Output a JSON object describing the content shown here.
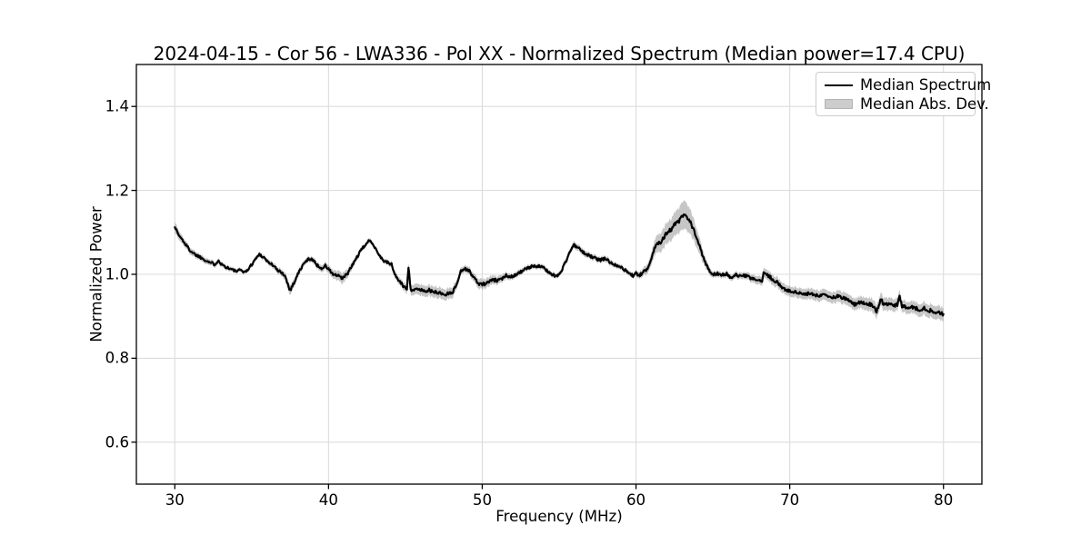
{
  "chart_data": {
    "type": "line",
    "title": "2024-04-15 - Cor 56 - LWA336 - Pol XX - Normalized Spectrum (Median power=17.4 CPU)",
    "xlabel": "Frequency (MHz)",
    "ylabel": "Normalized Power",
    "xlim": [
      27.5,
      82.5
    ],
    "ylim": [
      0.5,
      1.5
    ],
    "xticks": [
      "30",
      "40",
      "50",
      "60",
      "70",
      "80"
    ],
    "yticks": [
      "0.6",
      "0.8",
      "1.0",
      "1.2",
      "1.4"
    ],
    "grid": true,
    "grid_color": "#dcdcdc",
    "legend": {
      "position": "upper-right",
      "entries": [
        {
          "label": "Median Spectrum",
          "swatch": "line",
          "color": "#000000"
        },
        {
          "label": "Median Abs. Dev.",
          "swatch": "patch",
          "color": "#cdcdcd"
        }
      ]
    },
    "series": [
      {
        "name": "Median Spectrum",
        "type": "line",
        "color": "#000000",
        "points": [
          [
            30.0,
            1.115
          ],
          [
            30.1,
            1.105
          ],
          [
            30.3,
            1.091
          ],
          [
            30.5,
            1.082
          ],
          [
            30.8,
            1.066
          ],
          [
            31.0,
            1.057
          ],
          [
            31.3,
            1.048
          ],
          [
            31.7,
            1.04
          ],
          [
            32.0,
            1.034
          ],
          [
            32.3,
            1.028
          ],
          [
            32.6,
            1.024
          ],
          [
            32.85,
            1.034
          ],
          [
            33.0,
            1.025
          ],
          [
            33.3,
            1.018
          ],
          [
            33.6,
            1.013
          ],
          [
            34.0,
            1.007
          ],
          [
            34.3,
            1.01
          ],
          [
            34.6,
            1.005
          ],
          [
            34.9,
            1.018
          ],
          [
            35.2,
            1.034
          ],
          [
            35.5,
            1.048
          ],
          [
            35.8,
            1.04
          ],
          [
            36.1,
            1.028
          ],
          [
            36.4,
            1.022
          ],
          [
            36.7,
            1.008
          ],
          [
            37.0,
            1.004
          ],
          [
            37.2,
            0.993
          ],
          [
            37.5,
            0.962
          ],
          [
            37.7,
            0.976
          ],
          [
            38.0,
            1.0
          ],
          [
            38.3,
            1.02
          ],
          [
            38.6,
            1.034
          ],
          [
            38.9,
            1.038
          ],
          [
            39.2,
            1.024
          ],
          [
            39.5,
            1.014
          ],
          [
            39.8,
            1.02
          ],
          [
            40.0,
            1.012
          ],
          [
            40.3,
            1.0
          ],
          [
            40.6,
            0.996
          ],
          [
            40.9,
            0.99
          ],
          [
            41.2,
            1.0
          ],
          [
            41.5,
            1.018
          ],
          [
            41.8,
            1.038
          ],
          [
            42.1,
            1.056
          ],
          [
            42.4,
            1.071
          ],
          [
            42.65,
            1.08
          ],
          [
            42.9,
            1.073
          ],
          [
            43.2,
            1.052
          ],
          [
            43.5,
            1.035
          ],
          [
            43.8,
            1.028
          ],
          [
            44.1,
            1.024
          ],
          [
            44.3,
            1.0
          ],
          [
            44.6,
            0.984
          ],
          [
            44.9,
            0.97
          ],
          [
            45.1,
            0.967
          ],
          [
            45.2,
            1.018
          ],
          [
            45.35,
            0.964
          ],
          [
            45.6,
            0.962
          ],
          [
            45.9,
            0.965
          ],
          [
            46.2,
            0.96
          ],
          [
            46.5,
            0.963
          ],
          [
            46.8,
            0.957
          ],
          [
            47.1,
            0.958
          ],
          [
            47.4,
            0.953
          ],
          [
            47.6,
            0.951
          ],
          [
            47.9,
            0.957
          ],
          [
            48.1,
            0.958
          ],
          [
            48.35,
            0.978
          ],
          [
            48.6,
            1.008
          ],
          [
            48.9,
            1.013
          ],
          [
            49.1,
            1.01
          ],
          [
            49.4,
            0.995
          ],
          [
            49.7,
            0.98
          ],
          [
            49.9,
            0.976
          ],
          [
            50.2,
            0.977
          ],
          [
            50.5,
            0.984
          ],
          [
            50.8,
            0.986
          ],
          [
            51.1,
            0.985
          ],
          [
            51.35,
            0.991
          ],
          [
            51.55,
            0.999
          ],
          [
            51.8,
            0.994
          ],
          [
            52.1,
            0.998
          ],
          [
            52.4,
            1.004
          ],
          [
            52.7,
            1.01
          ],
          [
            53.0,
            1.015
          ],
          [
            53.3,
            1.02
          ],
          [
            53.6,
            1.02
          ],
          [
            53.9,
            1.017
          ],
          [
            54.2,
            1.009
          ],
          [
            54.5,
            1.001
          ],
          [
            54.8,
            0.995
          ],
          [
            55.1,
            1.004
          ],
          [
            55.4,
            1.028
          ],
          [
            55.7,
            1.054
          ],
          [
            55.95,
            1.07
          ],
          [
            56.2,
            1.064
          ],
          [
            56.5,
            1.054
          ],
          [
            56.8,
            1.047
          ],
          [
            57.1,
            1.042
          ],
          [
            57.4,
            1.037
          ],
          [
            57.7,
            1.034
          ],
          [
            58.0,
            1.038
          ],
          [
            58.3,
            1.029
          ],
          [
            58.6,
            1.024
          ],
          [
            58.9,
            1.02
          ],
          [
            59.2,
            1.012
          ],
          [
            59.5,
            1.004
          ],
          [
            59.8,
            0.997
          ],
          [
            60.0,
            1.002
          ],
          [
            60.2,
            0.997
          ],
          [
            60.5,
            1.005
          ],
          [
            60.7,
            1.012
          ],
          [
            61.0,
            1.038
          ],
          [
            61.2,
            1.062
          ],
          [
            61.35,
            1.072
          ],
          [
            61.6,
            1.078
          ],
          [
            61.9,
            1.094
          ],
          [
            62.2,
            1.104
          ],
          [
            62.5,
            1.117
          ],
          [
            62.8,
            1.127
          ],
          [
            63.1,
            1.141
          ],
          [
            63.3,
            1.133
          ],
          [
            63.5,
            1.127
          ],
          [
            63.8,
            1.1
          ],
          [
            64.1,
            1.07
          ],
          [
            64.4,
            1.04
          ],
          [
            64.7,
            1.012
          ],
          [
            65.0,
            1.0
          ],
          [
            65.3,
            1.002
          ],
          [
            65.6,
            0.998
          ],
          [
            65.9,
            1.001
          ],
          [
            66.2,
            0.99
          ],
          [
            66.5,
            0.998
          ],
          [
            66.8,
            0.995
          ],
          [
            67.1,
            0.997
          ],
          [
            67.4,
            0.991
          ],
          [
            67.7,
            0.989
          ],
          [
            68.0,
            0.985
          ],
          [
            68.2,
            0.98
          ],
          [
            68.3,
            1.006
          ],
          [
            68.6,
            0.997
          ],
          [
            68.9,
            0.988
          ],
          [
            69.2,
            0.98
          ],
          [
            69.5,
            0.97
          ],
          [
            69.8,
            0.962
          ],
          [
            70.1,
            0.958
          ],
          [
            70.4,
            0.957
          ],
          [
            70.7,
            0.954
          ],
          [
            71.0,
            0.951
          ],
          [
            71.3,
            0.955
          ],
          [
            71.6,
            0.949
          ],
          [
            71.9,
            0.95
          ],
          [
            72.2,
            0.953
          ],
          [
            72.5,
            0.947
          ],
          [
            72.8,
            0.944
          ],
          [
            73.1,
            0.948
          ],
          [
            73.4,
            0.944
          ],
          [
            73.7,
            0.94
          ],
          [
            74.0,
            0.933
          ],
          [
            74.3,
            0.927
          ],
          [
            74.6,
            0.935
          ],
          [
            74.9,
            0.931
          ],
          [
            75.2,
            0.929
          ],
          [
            75.5,
            0.92
          ],
          [
            75.65,
            0.91
          ],
          [
            75.9,
            0.941
          ],
          [
            76.1,
            0.931
          ],
          [
            76.4,
            0.929
          ],
          [
            76.7,
            0.926
          ],
          [
            77.0,
            0.927
          ],
          [
            77.15,
            0.947
          ],
          [
            77.3,
            0.924
          ],
          [
            77.6,
            0.921
          ],
          [
            77.9,
            0.924
          ],
          [
            78.2,
            0.919
          ],
          [
            78.5,
            0.916
          ],
          [
            78.8,
            0.919
          ],
          [
            79.1,
            0.914
          ],
          [
            79.4,
            0.911
          ],
          [
            79.7,
            0.909
          ],
          [
            80.0,
            0.905
          ]
        ]
      },
      {
        "name": "Median Abs. Dev.",
        "type": "band",
        "color": "rgba(128,128,128,0.45)",
        "center_series": "Median Spectrum",
        "mad_points": [
          [
            30,
            0.013
          ],
          [
            30.5,
            0.009
          ],
          [
            31,
            0.008
          ],
          [
            32,
            0.007
          ],
          [
            33,
            0.006
          ],
          [
            34,
            0.005
          ],
          [
            35,
            0.005
          ],
          [
            36,
            0.006
          ],
          [
            37,
            0.008
          ],
          [
            37.5,
            0.012
          ],
          [
            38,
            0.008
          ],
          [
            38.5,
            0.006
          ],
          [
            39.5,
            0.008
          ],
          [
            40.3,
            0.01
          ],
          [
            40.9,
            0.013
          ],
          [
            41.3,
            0.01
          ],
          [
            42,
            0.006
          ],
          [
            43,
            0.005
          ],
          [
            44,
            0.006
          ],
          [
            44.8,
            0.009
          ],
          [
            45.3,
            0.012
          ],
          [
            46,
            0.013
          ],
          [
            47,
            0.013
          ],
          [
            48,
            0.013
          ],
          [
            48.7,
            0.008
          ],
          [
            49.3,
            0.009
          ],
          [
            49.8,
            0.012
          ],
          [
            50.5,
            0.011
          ],
          [
            51.2,
            0.009
          ],
          [
            52,
            0.007
          ],
          [
            53,
            0.006
          ],
          [
            54,
            0.006
          ],
          [
            55,
            0.006
          ],
          [
            56,
            0.008
          ],
          [
            57,
            0.007
          ],
          [
            58,
            0.007
          ],
          [
            59,
            0.006
          ],
          [
            60,
            0.006
          ],
          [
            60.8,
            0.012
          ],
          [
            61.3,
            0.02
          ],
          [
            61.8,
            0.024
          ],
          [
            62.3,
            0.026
          ],
          [
            62.8,
            0.03
          ],
          [
            63.1,
            0.034
          ],
          [
            63.5,
            0.03
          ],
          [
            64,
            0.022
          ],
          [
            64.5,
            0.012
          ],
          [
            65,
            0.007
          ],
          [
            66,
            0.007
          ],
          [
            67,
            0.008
          ],
          [
            68,
            0.01
          ],
          [
            68.6,
            0.012
          ],
          [
            69.5,
            0.012
          ],
          [
            70.5,
            0.012
          ],
          [
            71.5,
            0.013
          ],
          [
            72.5,
            0.013
          ],
          [
            73.5,
            0.014
          ],
          [
            74.5,
            0.014
          ],
          [
            75.5,
            0.016
          ],
          [
            76.5,
            0.015
          ],
          [
            77.5,
            0.014
          ],
          [
            78.5,
            0.015
          ],
          [
            79.5,
            0.016
          ],
          [
            80,
            0.016
          ]
        ]
      }
    ]
  }
}
